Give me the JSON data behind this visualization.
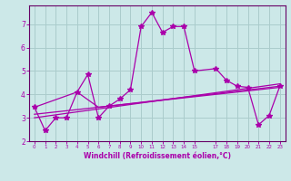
{
  "background_color": "#cce8e8",
  "grid_color": "#aacccc",
  "line_color": "#aa00aa",
  "xlabel": "Windchill (Refroidissement éolien,°C)",
  "xlim": [
    -0.5,
    23.5
  ],
  "ylim": [
    2.0,
    7.8
  ],
  "yticks": [
    2,
    3,
    4,
    5,
    6,
    7
  ],
  "xticks": [
    0,
    1,
    2,
    3,
    4,
    5,
    6,
    7,
    8,
    9,
    10,
    11,
    12,
    13,
    14,
    15,
    17,
    18,
    19,
    20,
    21,
    22,
    23
  ],
  "xtick_labels": [
    "0",
    "1",
    "2",
    "3",
    "4",
    "5",
    "6",
    "7",
    "8",
    "9",
    "10",
    "11",
    "12",
    "13",
    "14",
    "15",
    "17",
    "18",
    "19",
    "20",
    "21",
    "22",
    "23"
  ],
  "main_series": [
    [
      0,
      3.45
    ],
    [
      1,
      2.45
    ],
    [
      2,
      3.0
    ],
    [
      3,
      3.0
    ],
    [
      4,
      4.1
    ],
    [
      5,
      4.85
    ],
    [
      6,
      3.0
    ],
    [
      7,
      3.5
    ],
    [
      8,
      3.8
    ],
    [
      9,
      4.2
    ],
    [
      10,
      6.9
    ],
    [
      11,
      7.5
    ],
    [
      12,
      6.65
    ],
    [
      13,
      6.9
    ],
    [
      14,
      6.9
    ],
    [
      15,
      5.0
    ],
    [
      17,
      5.1
    ],
    [
      18,
      4.6
    ],
    [
      19,
      4.35
    ],
    [
      20,
      4.3
    ],
    [
      21,
      2.7
    ],
    [
      22,
      3.1
    ],
    [
      23,
      4.35
    ]
  ],
  "line_a": [
    [
      0,
      3.45
    ],
    [
      4,
      4.1
    ],
    [
      6,
      3.45
    ],
    [
      23,
      4.35
    ]
  ],
  "line_b": [
    [
      0,
      3.15
    ],
    [
      23,
      4.3
    ]
  ],
  "line_c": [
    [
      0,
      3.0
    ],
    [
      23,
      4.45
    ]
  ],
  "spine_color": "#660066"
}
